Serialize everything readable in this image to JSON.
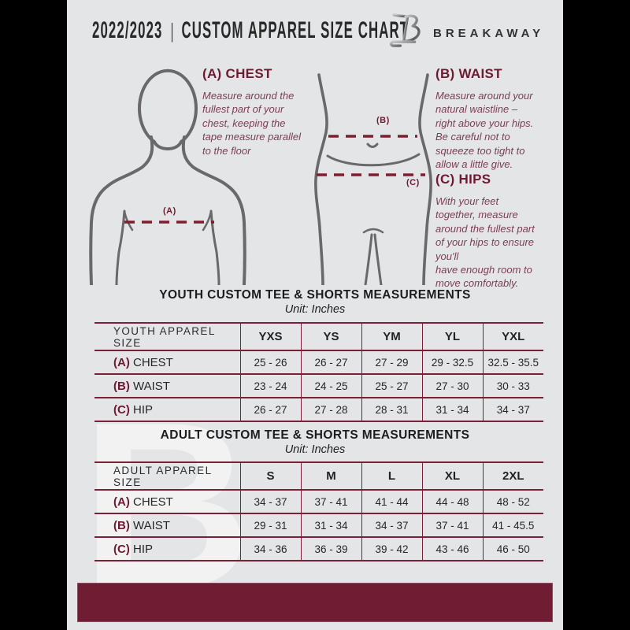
{
  "header": {
    "year": "2022/2023",
    "divider": "|",
    "title": "CUSTOM APPAREL SIZE CHART",
    "brand": "BREAKAWAY"
  },
  "instructions": {
    "a": {
      "heading": "(A) CHEST",
      "body": "Measure around the\nfullest part of your\nchest, keeping the\ntape measure parallel\nto the floor"
    },
    "b": {
      "heading": "(B) WAIST",
      "body": "Measure around your\nnatural waistline –\nright above your hips.\nBe careful not to\nsqueeze too tight to\nallow a little give."
    },
    "c": {
      "heading": "(C) HIPS",
      "body": "With your feet\ntogether, measure\naround the fullest part\nof your hips to ensure\nyou'll\nhave enough room to\nmove comfortably."
    }
  },
  "diagram_labels": {
    "chest": "(A)",
    "waist": "(B)",
    "hips": "(C)"
  },
  "sections": {
    "youth": {
      "title": "YOUTH CUSTOM TEE & SHORTS MEASUREMENTS",
      "unit": "Unit: Inches"
    },
    "adult": {
      "title": "ADULT CUSTOM TEE & SHORTS MEASUREMENTS",
      "unit": "Unit: Inches"
    }
  },
  "tables": {
    "youth": {
      "corner": "YOUTH APPAREL SIZE",
      "sizes": [
        "YXS",
        "YS",
        "YM",
        "YL",
        "YXL"
      ],
      "rows": [
        {
          "prefix": "(A)",
          "label": "CHEST",
          "values": [
            "25 - 26",
            "26 - 27",
            "27 - 29",
            "29 - 32.5",
            "32.5 - 35.5"
          ]
        },
        {
          "prefix": "(B)",
          "label": "WAIST",
          "values": [
            "23 - 24",
            "24 - 25",
            "25 - 27",
            "27 - 30",
            "30 - 33"
          ]
        },
        {
          "prefix": "(C)",
          "label": "HIP",
          "values": [
            "26 - 27",
            "27 - 28",
            "28 - 31",
            "31 - 34",
            "34 - 37"
          ]
        }
      ]
    },
    "adult": {
      "corner": "ADULT APPAREL SIZE",
      "sizes": [
        "S",
        "M",
        "L",
        "XL",
        "2XL"
      ],
      "rows": [
        {
          "prefix": "(A)",
          "label": "CHEST",
          "values": [
            "34 - 37",
            "37 - 41",
            "41 - 44",
            "44 - 48",
            "48 - 52"
          ]
        },
        {
          "prefix": "(B)",
          "label": "WAIST",
          "values": [
            "29 - 31",
            "31 - 34",
            "34 - 37",
            "37 - 41",
            "41 - 45.5"
          ]
        },
        {
          "prefix": "(C)",
          "label": "HIP",
          "values": [
            "34 - 36",
            "36 - 39",
            "39 - 42",
            "43 - 46",
            "46 - 50"
          ]
        }
      ]
    }
  },
  "watermark_letter": "B",
  "colors": {
    "accent_maroon": "#6e1a31",
    "table_border": "#7b2036",
    "footer_bar": "#701d33",
    "page_background": "#e4e5e7",
    "body_outline_gray": "#69696b"
  }
}
